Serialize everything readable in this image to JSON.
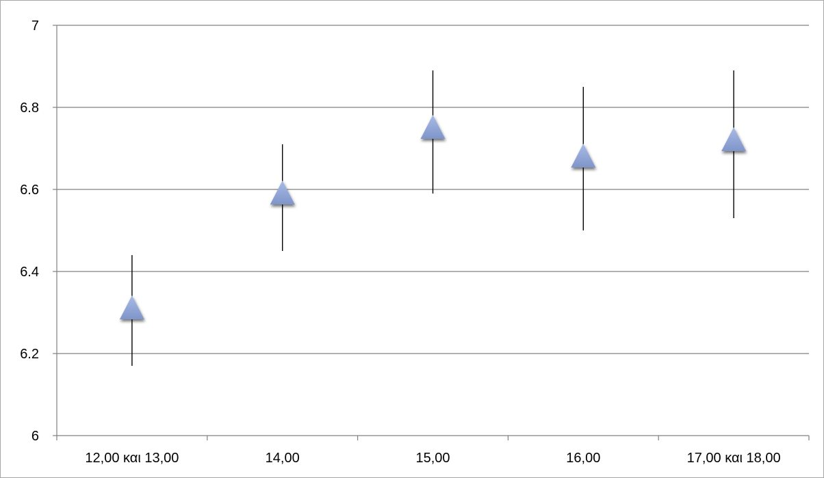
{
  "chart_data": {
    "type": "scatter",
    "title": "",
    "xlabel": "",
    "ylabel": "",
    "categories": [
      "12,00 και 13,00",
      "14,00",
      "15,00",
      "16,00",
      "17,00 και 18,00"
    ],
    "series": [
      {
        "values": [
          6.3,
          6.58,
          6.74,
          6.67,
          6.71
        ],
        "error_low": [
          6.17,
          6.45,
          6.59,
          6.5,
          6.53
        ],
        "error_high": [
          6.44,
          6.71,
          6.89,
          6.85,
          6.89
        ],
        "marker": "triangle",
        "color": "#8ea2d4"
      }
    ],
    "ylim": [
      6,
      7
    ],
    "yticks": [
      "6",
      "6.2",
      "6.4",
      "6.6",
      "6.8",
      "7"
    ],
    "yticks_values": [
      6,
      6.2,
      6.4,
      6.6,
      6.8,
      7
    ],
    "grid": true,
    "legend": "none"
  },
  "colors": {
    "gridline": "#808080",
    "axis": "#808080",
    "marker": "#8ea2d4",
    "error_bar": "#000000"
  }
}
